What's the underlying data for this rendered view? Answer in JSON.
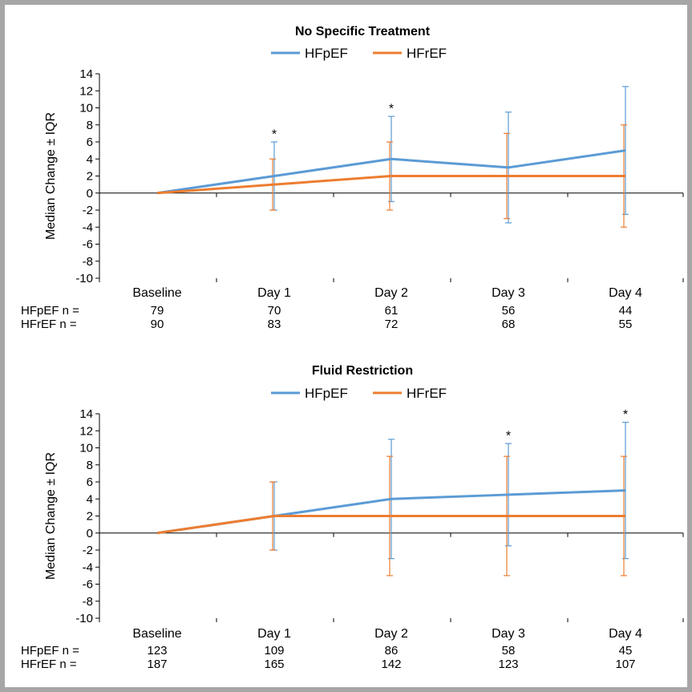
{
  "colors": {
    "HFpEF": "#5b9bd5",
    "HFrEF": "#ed7d31",
    "axis": "#000000",
    "border": "#a6a6a6"
  },
  "chart_data": [
    {
      "type": "line",
      "title": "No Specific Treatment",
      "ylabel": "Median Change ± IQR",
      "categories": [
        "Baseline",
        "Day 1",
        "Day 2",
        "Day 3",
        "Day 4"
      ],
      "ylim": [
        -10,
        14
      ],
      "yticks": [
        "14",
        "12",
        "10",
        "8",
        "6",
        "4",
        "2",
        "0",
        "-2",
        "-4",
        "-6",
        "-8",
        "-10"
      ],
      "legend_position": "top",
      "series": [
        {
          "name": "HFpEF",
          "color": "#5b9bd5",
          "values": [
            0,
            2,
            4,
            3,
            5
          ],
          "err_low": [
            0,
            -2,
            -1,
            -3.5,
            -2.5
          ],
          "err_high": [
            0,
            6,
            9,
            9.5,
            12.5
          ]
        },
        {
          "name": "HFrEF",
          "color": "#ed7d31",
          "values": [
            0,
            1,
            2,
            2,
            2
          ],
          "err_low": [
            0,
            -2,
            -2,
            -3,
            -4
          ],
          "err_high": [
            0,
            4,
            6,
            7,
            8
          ]
        }
      ],
      "significance": [
        {
          "category_index": 1,
          "label": "*",
          "y": 7
        },
        {
          "category_index": 2,
          "label": "*",
          "y": 10
        }
      ],
      "n_rows": [
        {
          "label": "HFpEF n =",
          "values": [
            "79",
            "70",
            "61",
            "56",
            "44"
          ]
        },
        {
          "label": "HFrEF  n =",
          "values": [
            "90",
            "83",
            "72",
            "68",
            "55"
          ]
        }
      ]
    },
    {
      "type": "line",
      "title": "Fluid Restriction",
      "ylabel": "Median Change ± IQR",
      "categories": [
        "Baseline",
        "Day 1",
        "Day 2",
        "Day 3",
        "Day 4"
      ],
      "ylim": [
        -10,
        14
      ],
      "yticks": [
        "14",
        "12",
        "10",
        "8",
        "6",
        "4",
        "2",
        "0",
        "-2",
        "-4",
        "-6",
        "-8",
        "-10"
      ],
      "legend_position": "top",
      "series": [
        {
          "name": "HFpEF",
          "color": "#5b9bd5",
          "values": [
            0,
            2,
            4,
            4.5,
            5
          ],
          "err_low": [
            0,
            -2,
            -3,
            -1.5,
            -3
          ],
          "err_high": [
            0,
            6,
            11,
            10.5,
            13
          ]
        },
        {
          "name": "HFrEF",
          "color": "#ed7d31",
          "values": [
            0,
            2,
            2,
            2,
            2
          ],
          "err_low": [
            0,
            -2,
            -5,
            -5,
            -5
          ],
          "err_high": [
            0,
            6,
            9,
            9,
            9
          ]
        }
      ],
      "significance": [
        {
          "category_index": 3,
          "label": "*",
          "y": 11.5
        },
        {
          "category_index": 4,
          "label": "*",
          "y": 14
        }
      ],
      "n_rows": [
        {
          "label": "HFpEF n =",
          "values": [
            "123",
            "109",
            "86",
            "58",
            "45"
          ]
        },
        {
          "label": "HFrEF  n =",
          "values": [
            "187",
            "165",
            "142",
            "123",
            "107"
          ]
        }
      ]
    }
  ]
}
